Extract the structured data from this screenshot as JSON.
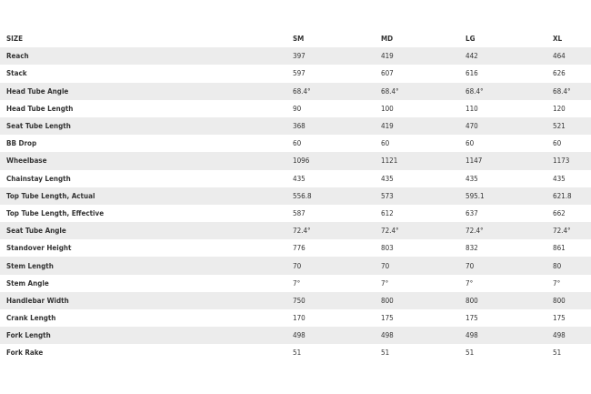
{
  "table": {
    "headers": [
      "SIZE",
      "SM",
      "MD",
      "LG",
      "XL"
    ],
    "rows": [
      {
        "label": "Reach",
        "values": [
          "397",
          "419",
          "442",
          "464"
        ]
      },
      {
        "label": "Stack",
        "values": [
          "597",
          "607",
          "616",
          "626"
        ]
      },
      {
        "label": "Head Tube Angle",
        "values": [
          "68.4°",
          "68.4°",
          "68.4°",
          "68.4°"
        ]
      },
      {
        "label": "Head Tube Length",
        "values": [
          "90",
          "100",
          "110",
          "120"
        ]
      },
      {
        "label": "Seat Tube Length",
        "values": [
          "368",
          "419",
          "470",
          "521"
        ]
      },
      {
        "label": "BB Drop",
        "values": [
          "60",
          "60",
          "60",
          "60"
        ]
      },
      {
        "label": "Wheelbase",
        "values": [
          "1096",
          "1121",
          "1147",
          "1173"
        ]
      },
      {
        "label": "Chainstay Length",
        "values": [
          "435",
          "435",
          "435",
          "435"
        ]
      },
      {
        "label": "Top Tube Length, Actual",
        "values": [
          "556.8",
          "573",
          "595.1",
          "621.8"
        ]
      },
      {
        "label": "Top Tube Length, Effective",
        "values": [
          "587",
          "612",
          "637",
          "662"
        ]
      },
      {
        "label": "Seat Tube Angle",
        "values": [
          "72.4°",
          "72.4°",
          "72.4°",
          "72.4°"
        ]
      },
      {
        "label": "Standover Height",
        "values": [
          "776",
          "803",
          "832",
          "861"
        ]
      },
      {
        "label": "Stem Length",
        "values": [
          "70",
          "70",
          "70",
          "80"
        ]
      },
      {
        "label": "Stem Angle",
        "values": [
          "7°",
          "7°",
          "7°",
          "7°"
        ]
      },
      {
        "label": "Handlebar Width",
        "values": [
          "750",
          "800",
          "800",
          "800"
        ]
      },
      {
        "label": "Crank Length",
        "values": [
          "170",
          "175",
          "175",
          "175"
        ]
      },
      {
        "label": "Fork Length",
        "values": [
          "498",
          "498",
          "498",
          "498"
        ]
      },
      {
        "label": "Fork Rake",
        "values": [
          "51",
          "51",
          "51",
          "51"
        ]
      }
    ]
  }
}
